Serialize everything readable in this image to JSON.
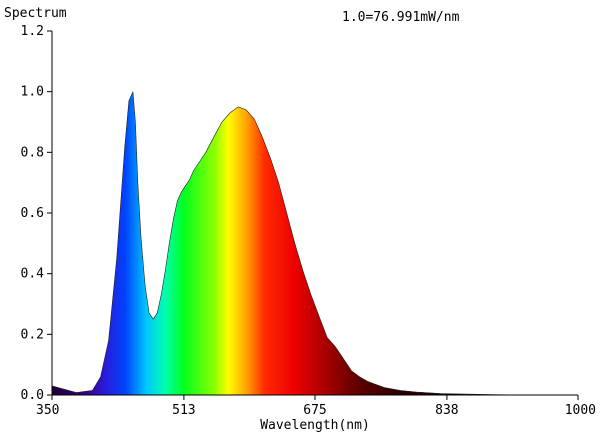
{
  "chart_data": {
    "type": "area",
    "title": "Spectrum",
    "annotation": "1.0=76.991mW/nm",
    "xlabel": "Wavelength(nm)",
    "ylabel": "",
    "xlim": [
      350,
      1000
    ],
    "ylim": [
      0,
      1.2
    ],
    "x_ticks": [
      "350",
      "513",
      "675",
      "838",
      "1000"
    ],
    "y_ticks": [
      "0.0",
      "0.2",
      "0.4",
      "0.6",
      "0.8",
      "1.0",
      "1.2"
    ],
    "grid": false,
    "fill": "wavelength-colored spectrum",
    "x": [
      350,
      380,
      400,
      410,
      420,
      430,
      440,
      445,
      450,
      453,
      456,
      460,
      465,
      470,
      475,
      480,
      485,
      490,
      495,
      500,
      505,
      510,
      515,
      520,
      525,
      530,
      540,
      550,
      560,
      570,
      580,
      590,
      600,
      610,
      620,
      630,
      640,
      650,
      660,
      670,
      680,
      690,
      700,
      710,
      720,
      730,
      740,
      750,
      760,
      780,
      800,
      830,
      860,
      900,
      950,
      1000
    ],
    "series": [
      {
        "values": [
          0.03,
          0.008,
          0.015,
          0.06,
          0.18,
          0.45,
          0.82,
          0.97,
          1.0,
          0.9,
          0.7,
          0.52,
          0.36,
          0.27,
          0.25,
          0.27,
          0.33,
          0.41,
          0.5,
          0.58,
          0.64,
          0.67,
          0.69,
          0.71,
          0.74,
          0.76,
          0.8,
          0.85,
          0.9,
          0.93,
          0.95,
          0.94,
          0.91,
          0.85,
          0.78,
          0.7,
          0.6,
          0.5,
          0.41,
          0.33,
          0.26,
          0.19,
          0.16,
          0.12,
          0.08,
          0.06,
          0.045,
          0.035,
          0.025,
          0.015,
          0.01,
          0.005,
          0.003,
          0.001,
          0.0,
          0.0
        ]
      }
    ]
  }
}
